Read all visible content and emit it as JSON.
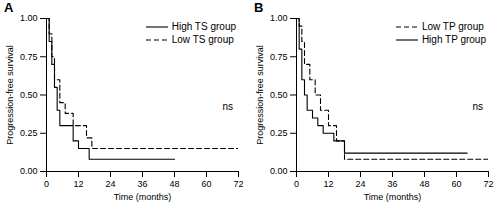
{
  "chart_data": [
    {
      "type": "line",
      "title": "A",
      "x_label": "Time (months)",
      "y_label": "Progression-free survival",
      "xlim": [
        0,
        72
      ],
      "xticks": [
        0,
        12,
        24,
        36,
        48,
        60,
        72
      ],
      "ylim": [
        0,
        1
      ],
      "yticks": [
        {
          "value": 0,
          "label": "0.00"
        },
        {
          "value": 0.25,
          "label": "0.25"
        },
        {
          "value": 0.5,
          "label": "0.50"
        },
        {
          "value": 0.75,
          "label": "0.75"
        },
        {
          "value": 1,
          "label": "1.00"
        }
      ],
      "legend": "top-right",
      "series": [
        {
          "name": "High TS group",
          "color": "#000000",
          "line_style": "solid",
          "x": [
            0,
            1,
            2,
            3,
            4,
            5,
            10,
            12,
            16,
            48
          ],
          "values": [
            1.0,
            0.85,
            0.7,
            0.55,
            0.4,
            0.3,
            0.2,
            0.15,
            0.08,
            0.08
          ]
        },
        {
          "name": "Low TS group",
          "color": "#000000",
          "line_style": "dashed",
          "x": [
            0,
            1,
            2,
            3,
            5,
            7,
            10,
            15,
            17,
            72
          ],
          "values": [
            1.0,
            0.9,
            0.75,
            0.6,
            0.45,
            0.38,
            0.3,
            0.22,
            0.15,
            0.15
          ]
        }
      ],
      "annotations": [
        {
          "text": "ns",
          "x": 68,
          "y": 0.42
        }
      ]
    },
    {
      "type": "line",
      "title": "B",
      "x_label": "Time (months)",
      "y_label": "Progression-free survival",
      "xlim": [
        0,
        72
      ],
      "xticks": [
        0,
        12,
        24,
        36,
        48,
        60,
        72
      ],
      "ylim": [
        0,
        1
      ],
      "yticks": [
        {
          "value": 0,
          "label": "0.00"
        },
        {
          "value": 0.25,
          "label": "0.25"
        },
        {
          "value": 0.5,
          "label": "0.50"
        },
        {
          "value": 0.75,
          "label": "0.75"
        },
        {
          "value": 1,
          "label": "1.00"
        }
      ],
      "legend": "top-right",
      "series": [
        {
          "name": "Low TP group",
          "color": "#000000",
          "line_style": "dashed",
          "x": [
            0,
            1,
            2,
            3,
            5,
            7,
            9,
            12,
            15,
            18,
            72
          ],
          "values": [
            1.0,
            0.95,
            0.85,
            0.7,
            0.6,
            0.5,
            0.4,
            0.3,
            0.2,
            0.08,
            0.08
          ]
        },
        {
          "name": "High TP group",
          "color": "#000000",
          "line_style": "solid",
          "x": [
            0,
            1,
            2,
            3,
            4,
            6,
            8,
            10,
            14,
            18,
            64
          ],
          "values": [
            1.0,
            0.8,
            0.6,
            0.5,
            0.4,
            0.35,
            0.3,
            0.25,
            0.2,
            0.12,
            0.12
          ]
        }
      ],
      "annotations": [
        {
          "text": "ns",
          "x": 68,
          "y": 0.42
        }
      ]
    }
  ]
}
